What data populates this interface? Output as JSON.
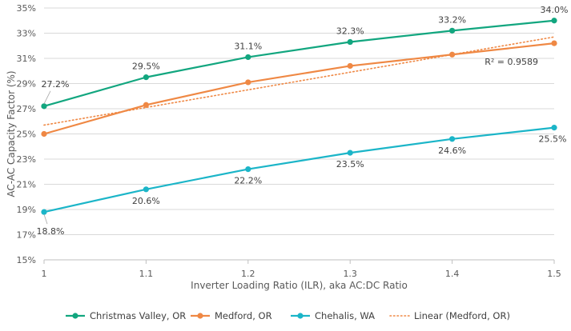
{
  "chart_data": {
    "type": "line",
    "xlabel": "Inverter Loading Ratio (ILR), aka AC:DC Ratio",
    "ylabel": "AC-AC Capacity Factor (%)",
    "x": [
      1,
      1.1,
      1.2,
      1.3,
      1.4,
      1.5
    ],
    "x_tick_labels": [
      "1",
      "1.1",
      "1.2",
      "1.3",
      "1.4",
      "1.5"
    ],
    "xlim": [
      1,
      1.5
    ],
    "ylim": [
      15,
      35
    ],
    "y_ticks": [
      15,
      17,
      19,
      21,
      23,
      25,
      27,
      29,
      31,
      33,
      35
    ],
    "y_tick_labels": [
      "15%",
      "17%",
      "19%",
      "21%",
      "23%",
      "25%",
      "27%",
      "29%",
      "31%",
      "33%",
      "35%"
    ],
    "grid": "horizontal",
    "legend_position": "bottom",
    "series": [
      {
        "name": "Christmas Valley, OR",
        "color": "#12A67F",
        "values": [
          27.2,
          29.5,
          31.1,
          32.3,
          33.2,
          34.0
        ],
        "labels": [
          "27.2%",
          "29.5%",
          "31.1%",
          "32.3%",
          "33.2%",
          "34.0%"
        ]
      },
      {
        "name": "Medford, OR",
        "color": "#EF8844",
        "values": [
          25.0,
          27.3,
          29.1,
          30.4,
          31.3,
          32.2
        ],
        "labels": []
      },
      {
        "name": "Chehalis, WA",
        "color": "#1BB5C8",
        "values": [
          18.8,
          20.6,
          22.2,
          23.5,
          24.6,
          25.5
        ],
        "labels": [
          "18.8%",
          "20.6%",
          "22.2%",
          "23.5%",
          "24.6%",
          "25.5%"
        ]
      }
    ],
    "trendline": {
      "name": "Linear (Medford, OR)",
      "color": "#EF8844",
      "style": "dotted",
      "start": [
        1,
        25.7
      ],
      "end": [
        1.5,
        32.7
      ],
      "annotation": "R² = 0.9589"
    }
  }
}
